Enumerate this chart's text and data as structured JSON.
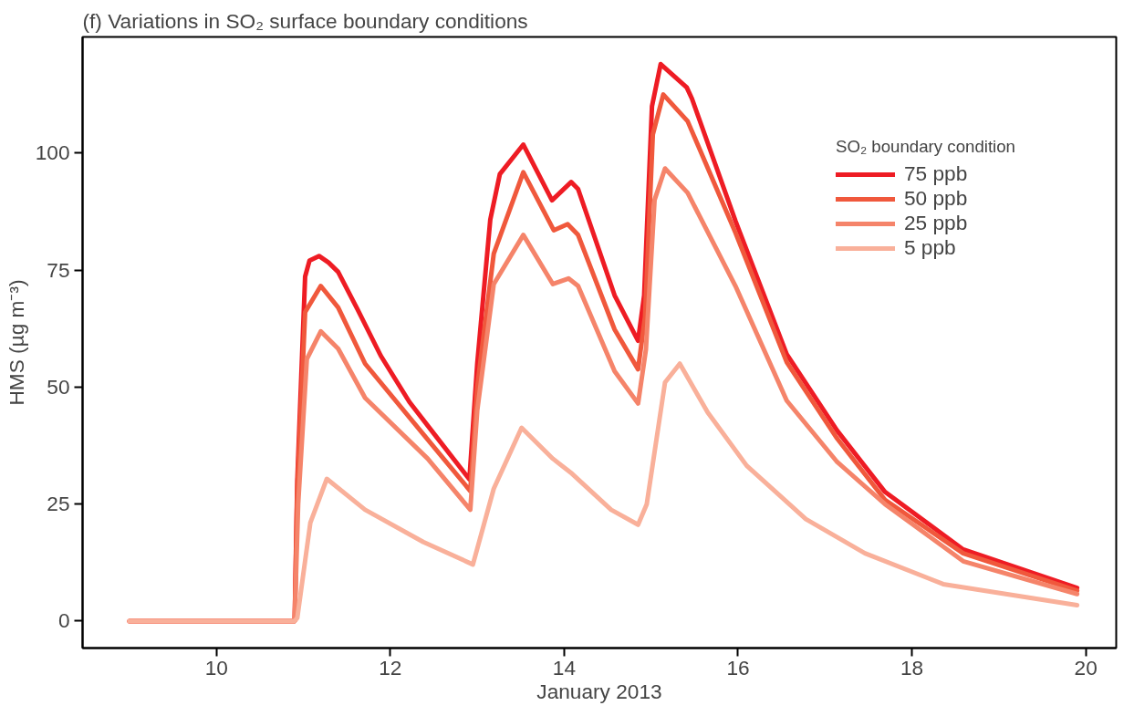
{
  "chart_data": {
    "type": "line",
    "title": "(f) Variations in SO₂ surface boundary conditions",
    "xlabel": "January 2013",
    "ylabel": "HMS (µg m⁻³)",
    "legend_title": "SO₂ boundary condition",
    "legend": "top right",
    "grid": false,
    "xlim": [
      8.46,
      20.35
    ],
    "ylim": [
      -5.75,
      124.8
    ],
    "xticks": [
      10,
      12,
      14,
      16,
      18,
      20
    ],
    "yticks": [
      0,
      25,
      50,
      75,
      100
    ],
    "series": [
      {
        "name": "75 ppb",
        "color": "#ee1c24",
        "x": [
          9.0,
          10.9,
          10.93,
          11.02,
          11.07,
          11.18,
          11.29,
          11.4,
          11.62,
          11.89,
          12.22,
          12.55,
          12.91,
          13.0,
          13.15,
          13.26,
          13.53,
          13.86,
          14.08,
          14.16,
          14.58,
          14.85,
          14.92,
          15.01,
          15.11,
          15.41,
          15.47,
          15.97,
          16.56,
          17.14,
          17.69,
          18.59,
          19.9
        ],
        "values": [
          0,
          0,
          30,
          73.6,
          77,
          78,
          76.6,
          74.6,
          66.7,
          56.7,
          46.8,
          38.9,
          30.3,
          55,
          85.8,
          95.5,
          101.8,
          89.9,
          93.8,
          92.3,
          69.6,
          59.9,
          69.6,
          110,
          119,
          114,
          111.6,
          85.5,
          57,
          40.7,
          27.6,
          15.3,
          7.1
        ]
      },
      {
        "name": "50 ppb",
        "color": "#f0583c",
        "x": [
          9.0,
          10.9,
          10.93,
          11.02,
          11.2,
          11.4,
          11.71,
          12.43,
          12.92,
          13.0,
          13.19,
          13.53,
          13.88,
          14.04,
          14.16,
          14.58,
          14.85,
          14.93,
          15.02,
          15.14,
          15.42,
          15.97,
          16.56,
          17.14,
          17.69,
          18.59,
          19.9
        ],
        "values": [
          0,
          0,
          28,
          66,
          71.6,
          67,
          55,
          38.8,
          27.8,
          50,
          78.5,
          95.9,
          83.5,
          84.8,
          82.5,
          62.3,
          53.8,
          65,
          104,
          112.5,
          106.8,
          83,
          55.3,
          39,
          25.9,
          14.5,
          6.5
        ]
      },
      {
        "name": "25 ppb",
        "color": "#f5846a",
        "x": [
          9.0,
          10.9,
          10.94,
          11.04,
          11.2,
          11.4,
          11.71,
          12.43,
          12.92,
          13.0,
          13.19,
          13.53,
          13.87,
          14.05,
          14.16,
          14.58,
          14.85,
          14.94,
          15.04,
          15.16,
          15.42,
          15.97,
          16.56,
          17.14,
          17.69,
          18.59,
          19.9
        ],
        "values": [
          0,
          0,
          25,
          56,
          61.9,
          58.2,
          47.7,
          34.7,
          23.8,
          45,
          72,
          82.5,
          72,
          73.2,
          71.6,
          53.4,
          46.5,
          58,
          90,
          96.7,
          91.5,
          71.6,
          47.1,
          34,
          25,
          12.8,
          5.8
        ]
      },
      {
        "name": "5 ppb",
        "color": "#f9b09a",
        "x": [
          9.0,
          10.9,
          10.93,
          11.08,
          11.27,
          11.71,
          12.38,
          12.95,
          13.19,
          13.51,
          13.87,
          14.09,
          14.54,
          14.85,
          14.95,
          15.16,
          15.33,
          15.65,
          16.1,
          16.78,
          17.46,
          18.36,
          19.9
        ],
        "values": [
          0,
          0,
          0.7,
          21,
          30.4,
          23.8,
          16.9,
          12.1,
          28.3,
          41.3,
          34.7,
          31.5,
          23.8,
          20.6,
          25,
          51,
          55,
          44.6,
          33.2,
          21.8,
          14.5,
          7.9,
          3.4
        ]
      }
    ]
  }
}
